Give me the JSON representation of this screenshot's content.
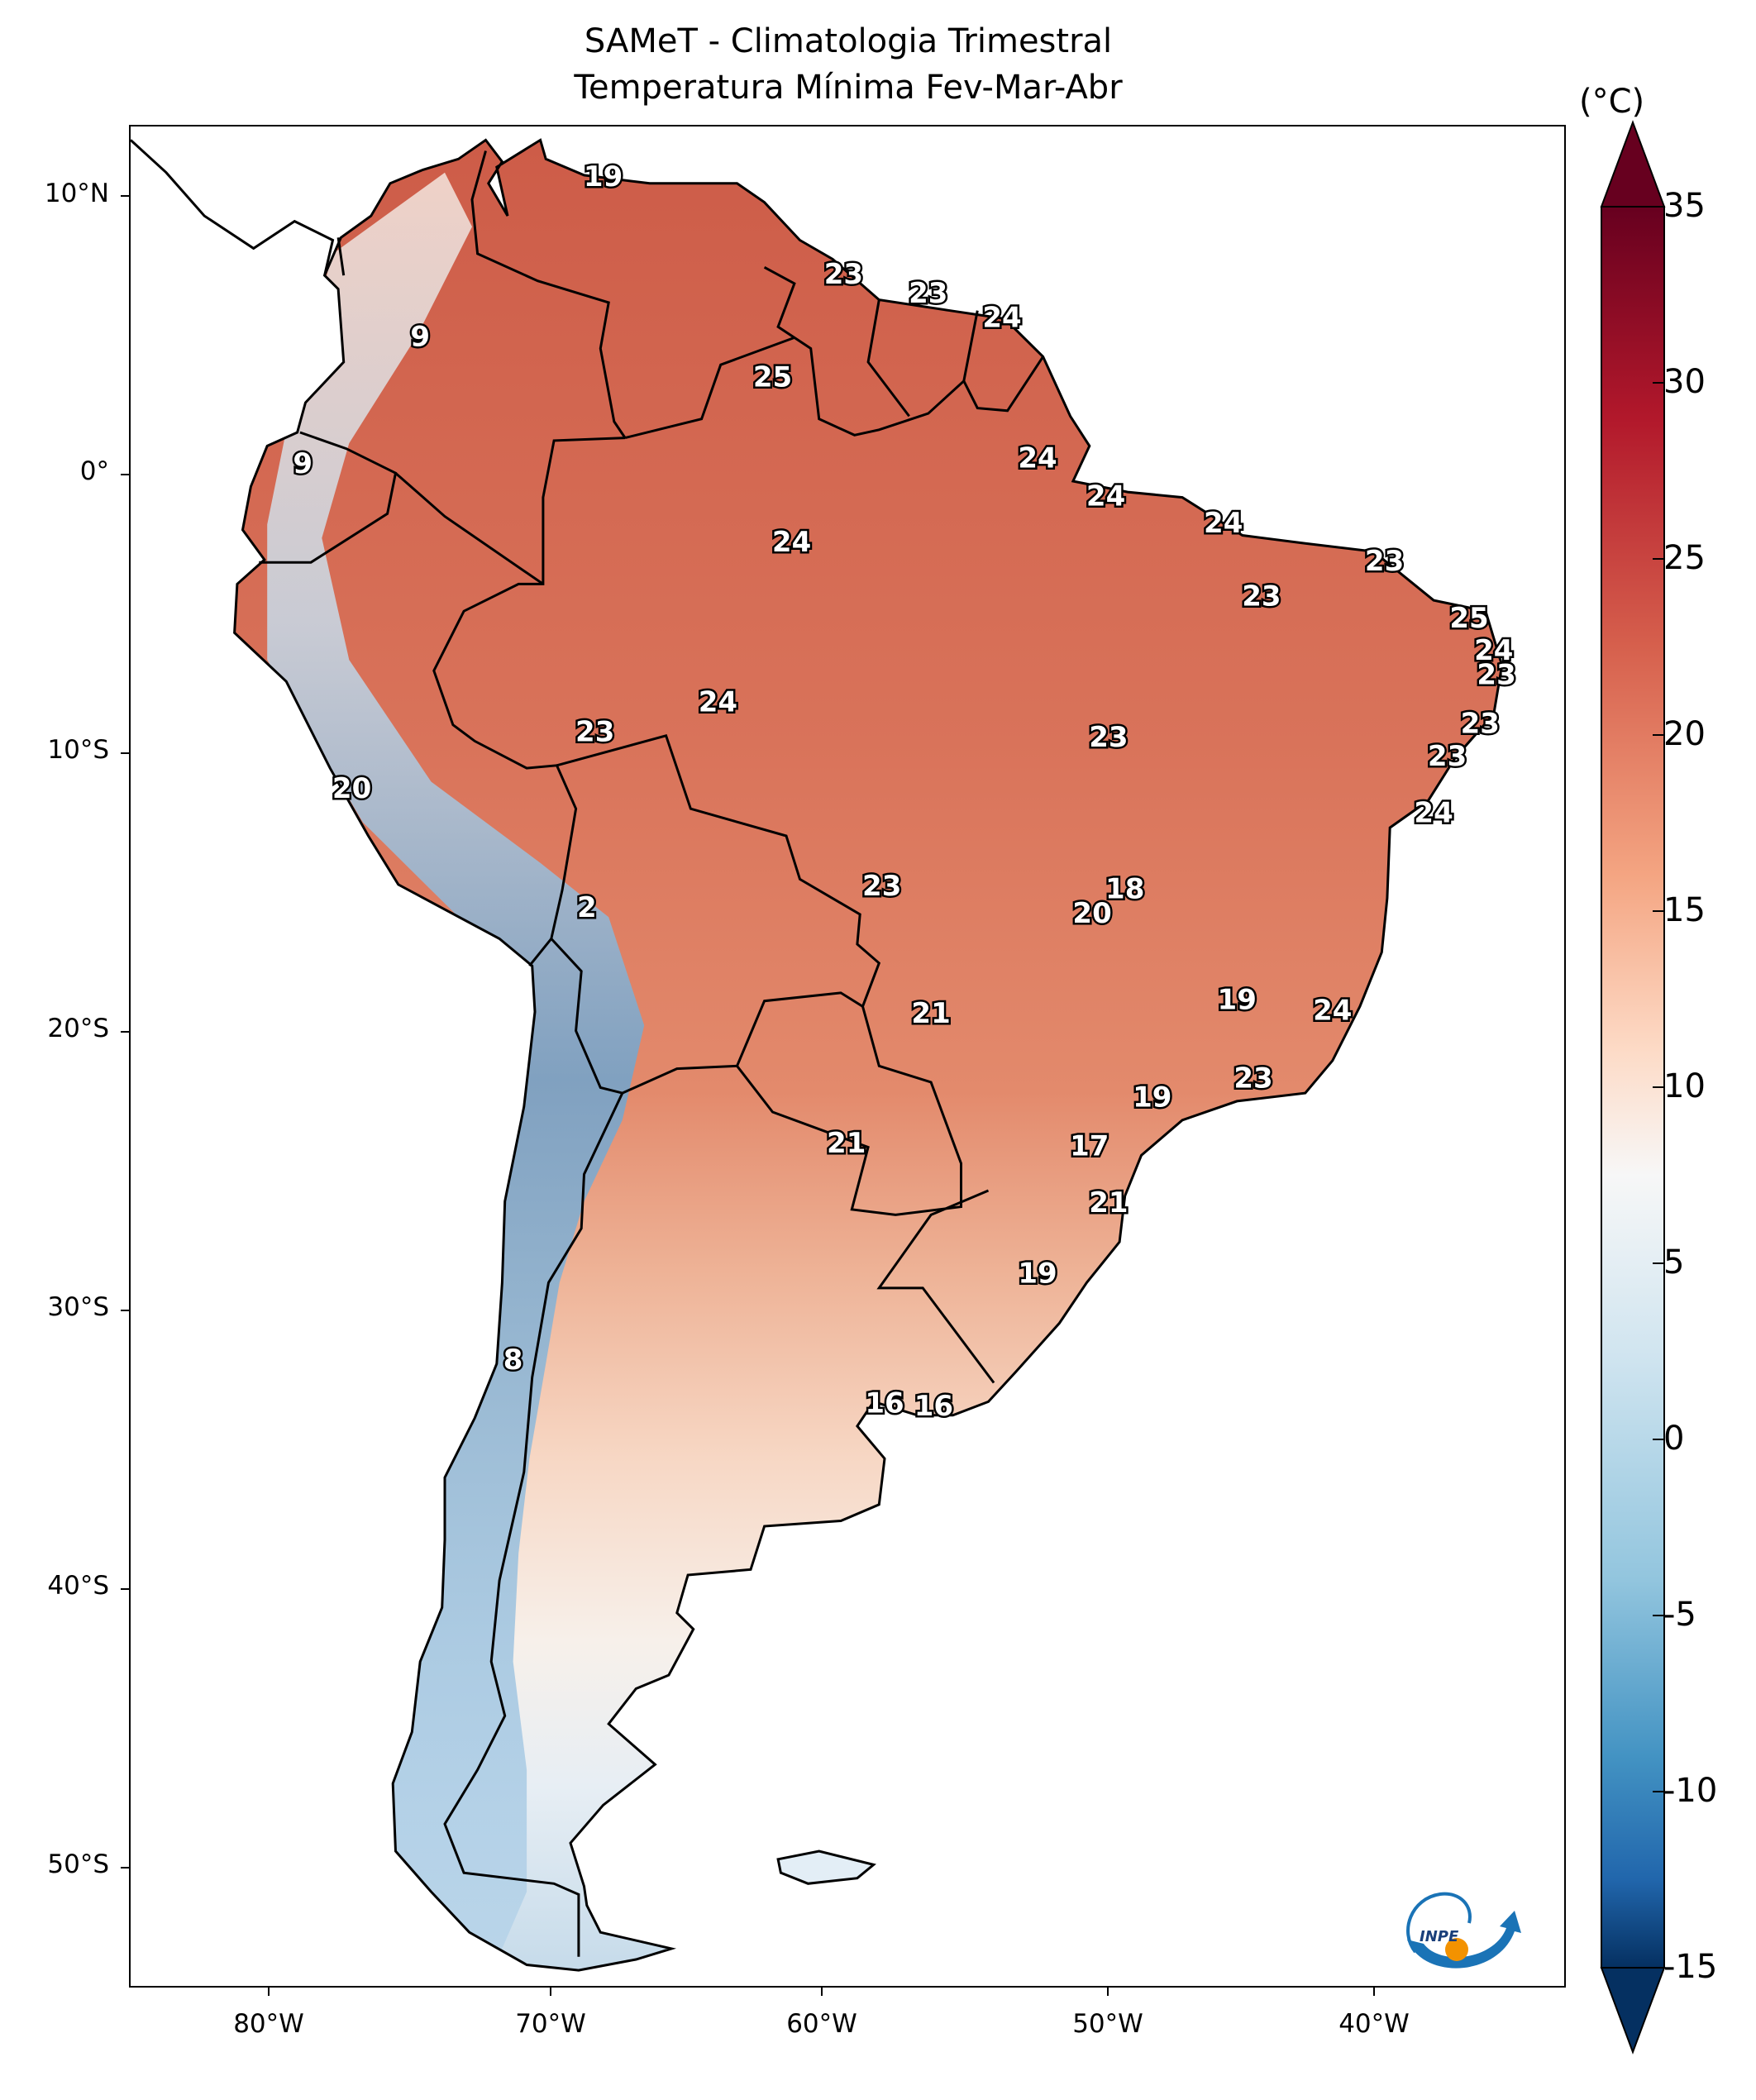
{
  "title": {
    "line1": "SAMeT - Climatologia Trimestral",
    "line2": "Temperatura Mínima   Fev-Mar-Abr"
  },
  "colorbar": {
    "unit": "(°C)",
    "min": -15,
    "max": 35,
    "ticks": [
      "35",
      "30",
      "25",
      "20",
      "15",
      "10",
      "5",
      "0",
      "-5",
      "-10",
      "-15"
    ],
    "colormap": "RdBu_r",
    "extend": "both"
  },
  "axes": {
    "lon_ticks": [
      "80°W",
      "70°W",
      "60°W",
      "50°W",
      "40°W"
    ],
    "lat_ticks": [
      "10°N",
      "0°",
      "10°S",
      "20°S",
      "30°S",
      "40°S",
      "50°S"
    ]
  },
  "colors": {
    "warm_high": "#cd5c48",
    "warm": "#e38a6c",
    "mid": "#f7d7c4",
    "neutral": "#f7f5f2",
    "cool": "#c6dbea",
    "cold": "#4a86bd",
    "logo_blue": "#1a73b6",
    "logo_orange": "#f39200"
  },
  "map_labels": [
    {
      "text": "19",
      "lon": -67.7,
      "lat": 10.5
    },
    {
      "text": "23",
      "lon": -58.9,
      "lat": 6.9
    },
    {
      "text": "23",
      "lon": -55.8,
      "lat": 6.2
    },
    {
      "text": "24",
      "lon": -53.1,
      "lat": 5.3
    },
    {
      "text": "9",
      "lon": -74.4,
      "lat": 4.6
    },
    {
      "text": "25",
      "lon": -61.5,
      "lat": 3.1
    },
    {
      "text": "9",
      "lon": -78.7,
      "lat": -0.1
    },
    {
      "text": "24",
      "lon": -51.8,
      "lat": 0.1
    },
    {
      "text": "24",
      "lon": -49.3,
      "lat": -1.3
    },
    {
      "text": "24",
      "lon": -45.0,
      "lat": -2.3
    },
    {
      "text": "24",
      "lon": -60.8,
      "lat": -3.0
    },
    {
      "text": "23",
      "lon": -39.1,
      "lat": -3.7
    },
    {
      "text": "23",
      "lon": -43.6,
      "lat": -5.0
    },
    {
      "text": "25",
      "lon": -36.0,
      "lat": -5.8
    },
    {
      "text": "24",
      "lon": -35.1,
      "lat": -7.0
    },
    {
      "text": "23",
      "lon": -35.0,
      "lat": -7.9
    },
    {
      "text": "24",
      "lon": -63.5,
      "lat": -8.9
    },
    {
      "text": "23",
      "lon": -68.0,
      "lat": -10.0
    },
    {
      "text": "23",
      "lon": -49.2,
      "lat": -10.2
    },
    {
      "text": "23",
      "lon": -35.6,
      "lat": -9.7
    },
    {
      "text": "23",
      "lon": -36.8,
      "lat": -10.9
    },
    {
      "text": "20",
      "lon": -76.9,
      "lat": -12.1
    },
    {
      "text": "24",
      "lon": -37.3,
      "lat": -13.0
    },
    {
      "text": "18",
      "lon": -48.6,
      "lat": -15.8
    },
    {
      "text": "23",
      "lon": -57.5,
      "lat": -15.7
    },
    {
      "text": "20",
      "lon": -49.8,
      "lat": -16.7
    },
    {
      "text": "2",
      "lon": -68.3,
      "lat": -16.5
    },
    {
      "text": "19",
      "lon": -44.5,
      "lat": -19.9
    },
    {
      "text": "21",
      "lon": -55.7,
      "lat": -20.4
    },
    {
      "text": "24",
      "lon": -41.0,
      "lat": -20.3
    },
    {
      "text": "23",
      "lon": -43.9,
      "lat": -22.8
    },
    {
      "text": "19",
      "lon": -47.6,
      "lat": -23.5
    },
    {
      "text": "21",
      "lon": -58.8,
      "lat": -25.2
    },
    {
      "text": "17",
      "lon": -49.9,
      "lat": -25.3
    },
    {
      "text": "21",
      "lon": -49.2,
      "lat": -27.4
    },
    {
      "text": "19",
      "lon": -51.8,
      "lat": -30.0
    },
    {
      "text": "8",
      "lon": -71.0,
      "lat": -33.2
    },
    {
      "text": "16",
      "lon": -57.4,
      "lat": -34.8
    },
    {
      "text": "16",
      "lon": -55.6,
      "lat": -34.9
    }
  ]
}
